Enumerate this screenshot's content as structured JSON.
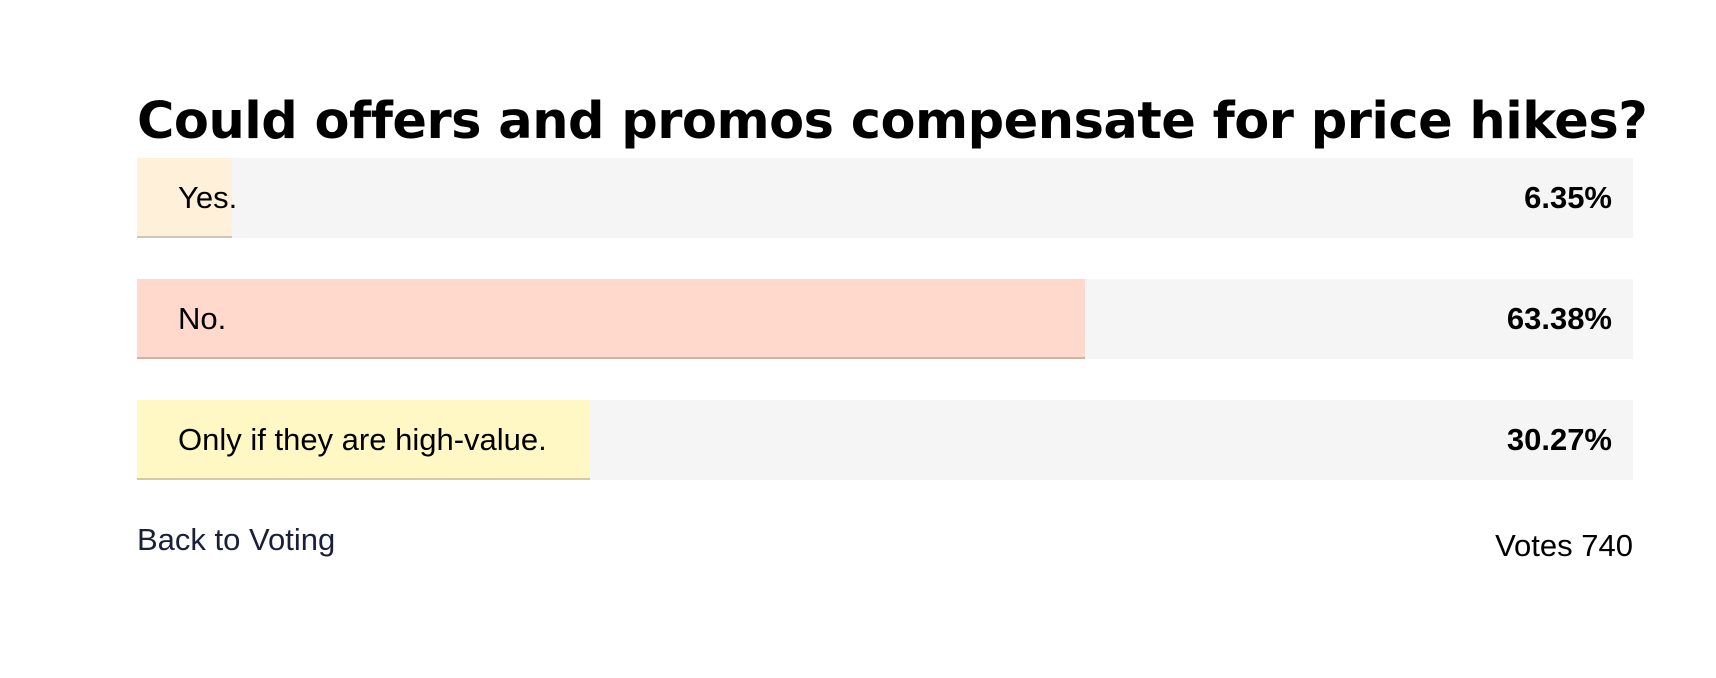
{
  "poll": {
    "question": "Could offers and promos compensate for price hikes?",
    "options": [
      {
        "label": "Yes.",
        "percent_label": "6.35%",
        "percent": 6.35,
        "color": "#fff0d9"
      },
      {
        "label": "No.",
        "percent_label": "63.38%",
        "percent": 63.38,
        "color": "#ffd9cc"
      },
      {
        "label": "Only if they are high-value.",
        "percent_label": "30.27%",
        "percent": 30.27,
        "color": "#fff8c4"
      }
    ],
    "back_link": "Back to Voting",
    "votes_label": "Votes 740"
  },
  "colors": {
    "track": "#f5f5f5",
    "link": "#1a1f3a"
  }
}
